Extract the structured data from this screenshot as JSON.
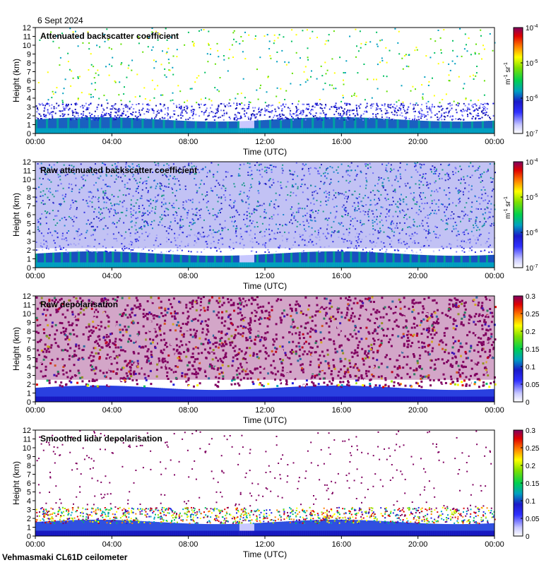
{
  "date_label": "6 Sept 2024",
  "footer_label": "Vehmasmaki CL61D ceilometer",
  "chart_data": [
    {
      "type": "heatmap",
      "title": "Attenuated backscatter coefficient",
      "xlabel": "Time (UTC)",
      "ylabel": "Height (km)",
      "x_ticks": [
        "00:00",
        "04:00",
        "08:00",
        "12:00",
        "16:00",
        "20:00",
        "00:00"
      ],
      "y_ticks": [
        "0",
        "1",
        "2",
        "3",
        "4",
        "5",
        "6",
        "7",
        "8",
        "9",
        "10",
        "11",
        "12"
      ],
      "ylim": [
        0,
        12
      ],
      "colorbar": {
        "scale": "log",
        "range": [
          1e-07,
          0.0001
        ],
        "ticks": [
          {
            "base": "10",
            "exp": "-7"
          },
          {
            "base": "10",
            "exp": "-6"
          },
          {
            "base": "10",
            "exp": "-5"
          },
          {
            "base": "10",
            "exp": "-4"
          }
        ],
        "label_main": "m",
        "label_sup1": "-1",
        "label_mid": " sr",
        "label_sup2": "-1"
      },
      "features": "Dense aerosol layer below ~2 km, scattered signal up to ~3.5 km, sparse noise aloft, gap near 10:00"
    },
    {
      "type": "heatmap",
      "title": "Raw attenuated backscatter coefficient",
      "xlabel": "Time (UTC)",
      "ylabel": "Height (km)",
      "x_ticks": [
        "00:00",
        "04:00",
        "08:00",
        "12:00",
        "16:00",
        "20:00",
        "00:00"
      ],
      "y_ticks": [
        "0",
        "1",
        "2",
        "3",
        "4",
        "5",
        "6",
        "7",
        "8",
        "9",
        "10",
        "11",
        "12"
      ],
      "ylim": [
        0,
        12
      ],
      "colorbar": {
        "scale": "log",
        "range": [
          1e-07,
          0.0001
        ],
        "ticks": [
          {
            "base": "10",
            "exp": "-7"
          },
          {
            "base": "10",
            "exp": "-6"
          },
          {
            "base": "10",
            "exp": "-5"
          },
          {
            "base": "10",
            "exp": "-4"
          }
        ],
        "label_main": "m",
        "label_sup1": "-1",
        "label_mid": " sr",
        "label_sup2": "-1"
      },
      "features": "Noisy signal at all heights, boundary layer top near 1.5-2 km"
    },
    {
      "type": "heatmap",
      "title": "Raw depolarisation",
      "xlabel": "Time (UTC)",
      "ylabel": "Height (km)",
      "x_ticks": [
        "00:00",
        "04:00",
        "08:00",
        "12:00",
        "16:00",
        "20:00",
        "00:00"
      ],
      "y_ticks": [
        "0",
        "1",
        "2",
        "3",
        "4",
        "5",
        "6",
        "7",
        "8",
        "9",
        "10",
        "11",
        "12"
      ],
      "ylim": [
        0,
        12
      ],
      "colorbar": {
        "scale": "linear",
        "range": [
          0,
          0.3
        ],
        "ticks": [
          "0",
          "0.05",
          "0.1",
          "0.15",
          "0.2",
          "0.25",
          "0.3"
        ]
      },
      "features": "Low depolarisation below ~2 km, noisy high values aloft"
    },
    {
      "type": "heatmap",
      "title": "Smoothed lidar depolarisation",
      "xlabel": "Time (UTC)",
      "ylabel": "Height (km)",
      "x_ticks": [
        "00:00",
        "04:00",
        "08:00",
        "12:00",
        "16:00",
        "20:00",
        "00:00"
      ],
      "y_ticks": [
        "0",
        "1",
        "2",
        "3",
        "4",
        "5",
        "6",
        "7",
        "8",
        "9",
        "10",
        "11",
        "12"
      ],
      "ylim": [
        0,
        12
      ],
      "colorbar": {
        "scale": "linear",
        "range": [
          0,
          0.3
        ],
        "ticks": [
          "0",
          "0.05",
          "0.1",
          "0.15",
          "0.2",
          "0.25",
          "0.3"
        ]
      },
      "features": "Low depolarisation in boundary layer below ~2 km, speckle up to ~3 km, sparse points aloft"
    }
  ]
}
